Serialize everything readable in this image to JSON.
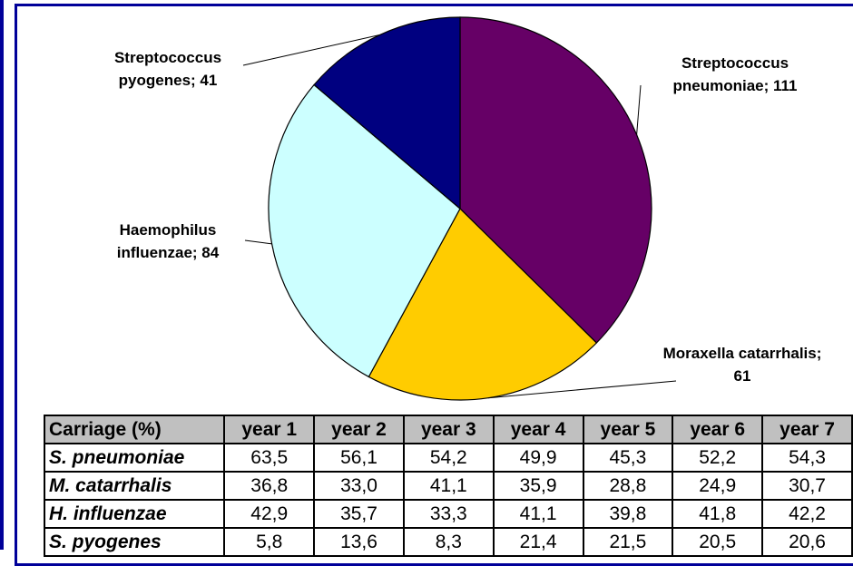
{
  "chart_data": {
    "type": "pie",
    "categories": [
      "Streptococcus pneumoniae",
      "Moraxella catarrhalis",
      "Haemophilus influenzae",
      "Streptococcus pyogenes"
    ],
    "values": [
      111,
      61,
      84,
      41
    ],
    "value_labels": [
      "; 111",
      "; 61",
      "; 84",
      "; 41"
    ],
    "colors": [
      "#660066",
      "#ffcc00",
      "#ccffff",
      "#000080"
    ]
  },
  "table": {
    "header": [
      "Carriage (%)",
      "year 1",
      "year 2",
      "year 3",
      "year 4",
      "year 5",
      "year 6",
      "year 7"
    ],
    "rows": [
      [
        "S. pneumoniae",
        "63,5",
        "56,1",
        "54,2",
        "49,9",
        "45,3",
        "52,2",
        "54,3"
      ],
      [
        "M. catarrhalis",
        "36,8",
        "33,0",
        "41,1",
        "35,9",
        "28,8",
        "24,9",
        "30,7"
      ],
      [
        "H. influenzae",
        "42,9",
        "35,7",
        "33,3",
        "41,1",
        "39,8",
        "41,8",
        "42,2"
      ],
      [
        "S. pyogenes",
        "5,8",
        "13,6",
        "8,3",
        "21,4",
        "21,5",
        "20,5",
        "20,6"
      ]
    ]
  }
}
